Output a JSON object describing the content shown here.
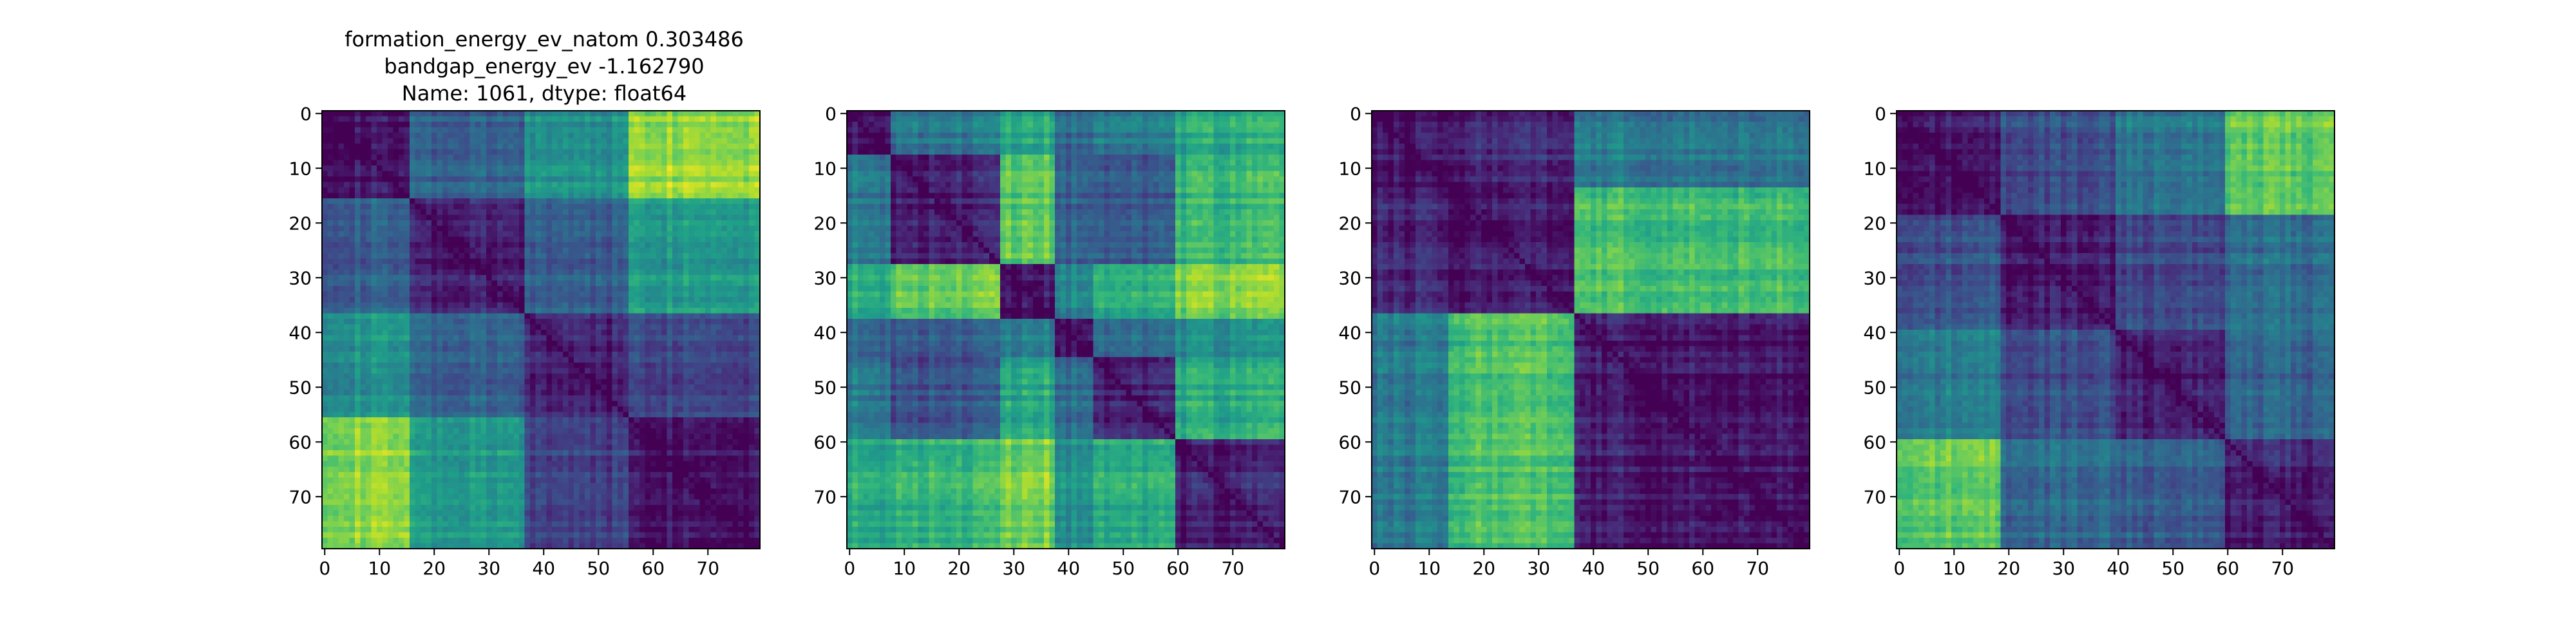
{
  "chart_data": [
    {
      "type": "heatmap",
      "title_lines": [
        "formation_energy_ev_natom    0.303486",
        "bandgap_energy_ev           -1.162790",
        "Name: 1061, dtype: float64"
      ],
      "size": 80,
      "block_bounds": [
        0,
        16,
        37,
        56,
        80
      ],
      "block_level": [
        [
          0.05,
          0.3,
          0.5,
          0.85
        ],
        [
          0.3,
          0.08,
          0.3,
          0.55
        ],
        [
          0.5,
          0.3,
          0.1,
          0.22
        ],
        [
          0.85,
          0.55,
          0.22,
          0.08
        ]
      ],
      "x_ticks": [
        0,
        10,
        20,
        30,
        40,
        50,
        60,
        70
      ],
      "y_ticks": [
        0,
        10,
        20,
        30,
        40,
        50,
        60,
        70
      ],
      "colormap": "viridis"
    },
    {
      "type": "heatmap",
      "title_lines": [],
      "size": 80,
      "block_bounds": [
        0,
        8,
        28,
        38,
        45,
        60,
        80
      ],
      "block_level": [
        [
          0.05,
          0.4,
          0.6,
          0.35,
          0.4,
          0.6
        ],
        [
          0.4,
          0.08,
          0.75,
          0.3,
          0.25,
          0.65
        ],
        [
          0.6,
          0.75,
          0.06,
          0.45,
          0.6,
          0.8
        ],
        [
          0.35,
          0.3,
          0.45,
          0.08,
          0.35,
          0.5
        ],
        [
          0.4,
          0.25,
          0.6,
          0.35,
          0.08,
          0.6
        ],
        [
          0.6,
          0.65,
          0.8,
          0.5,
          0.6,
          0.08
        ]
      ],
      "x_ticks": [
        0,
        10,
        20,
        30,
        40,
        50,
        60,
        70
      ],
      "y_ticks": [
        0,
        10,
        20,
        30,
        40,
        50,
        60,
        70
      ],
      "colormap": "viridis"
    },
    {
      "type": "heatmap",
      "title_lines": [],
      "size": 80,
      "block_bounds": [
        0,
        14,
        37,
        80
      ],
      "block_level": [
        [
          0.05,
          0.1,
          0.4
        ],
        [
          0.1,
          0.06,
          0.7
        ],
        [
          0.4,
          0.7,
          0.07
        ]
      ],
      "x_ticks": [
        0,
        10,
        20,
        30,
        40,
        50,
        60,
        70
      ],
      "y_ticks": [
        0,
        10,
        20,
        30,
        40,
        50,
        60,
        70
      ],
      "colormap": "viridis"
    },
    {
      "type": "heatmap",
      "title_lines": [],
      "size": 80,
      "block_bounds": [
        0,
        19,
        40,
        60,
        80
      ],
      "block_level": [
        [
          0.06,
          0.25,
          0.4,
          0.75
        ],
        [
          0.25,
          0.08,
          0.22,
          0.35
        ],
        [
          0.4,
          0.22,
          0.08,
          0.3
        ],
        [
          0.75,
          0.35,
          0.3,
          0.08
        ]
      ],
      "x_ticks": [
        0,
        10,
        20,
        30,
        40,
        50,
        60,
        70
      ],
      "y_ticks": [
        0,
        10,
        20,
        30,
        40,
        50,
        60,
        70
      ],
      "colormap": "viridis"
    }
  ]
}
